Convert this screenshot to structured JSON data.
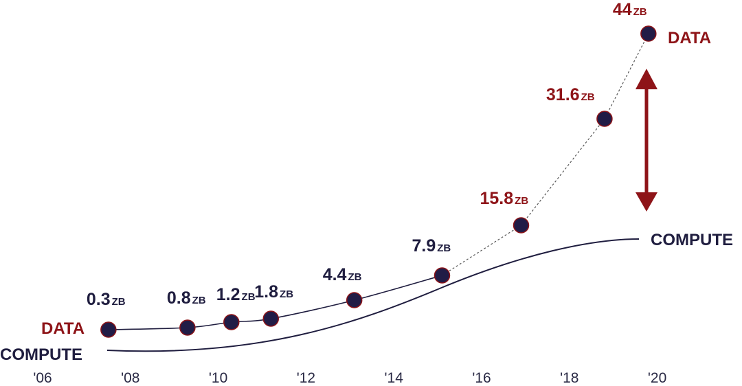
{
  "colors": {
    "navy": "#1f1d3f",
    "red": "#8e1418",
    "dot": "#211c46",
    "tick": "#2a2a45"
  },
  "chart_data": {
    "type": "line",
    "x_ticks": [
      "'06",
      "'08",
      "'10",
      "'12",
      "'14",
      "'16",
      "'18",
      "'20"
    ],
    "xlim": [
      2006,
      2020
    ],
    "series": [
      {
        "name": "DATA",
        "color": "#8e1418",
        "x": [
          2007.5,
          2009.3,
          2010.3,
          2011.2,
          2013.1,
          2015.1,
          2016.9,
          2018.8,
          2019.8
        ],
        "values": [
          0.3,
          0.8,
          1.2,
          1.8,
          4.4,
          7.9,
          15.8,
          31.6,
          44
        ],
        "value_labels": [
          "0.3",
          "0.8",
          "1.2",
          "1.8",
          "4.4",
          "7.9",
          "15.8",
          "31.6",
          "44"
        ],
        "unit": "ZB"
      },
      {
        "name": "COMPUTE",
        "color": "#1f1d3f"
      }
    ],
    "annotation": "double-headed arrow showing gap between DATA and COMPUTE",
    "grid": false,
    "legend": "inline labels"
  }
}
